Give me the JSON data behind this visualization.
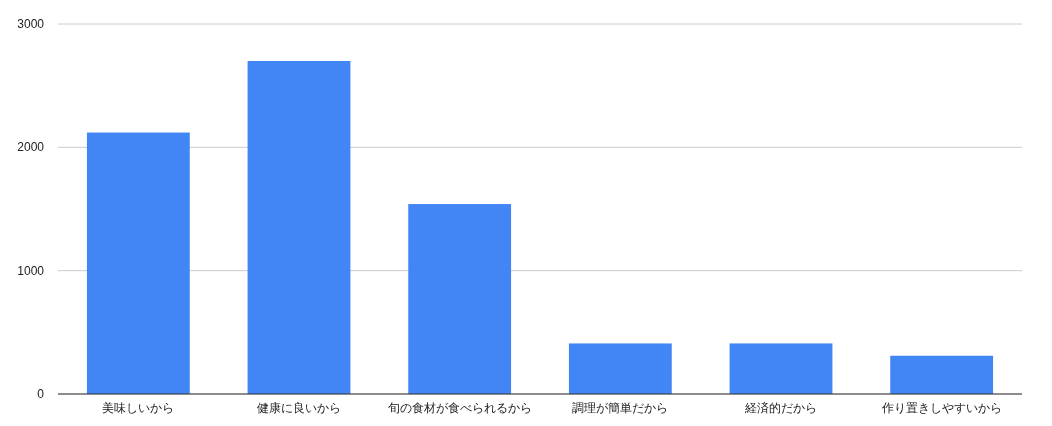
{
  "chart_data": {
    "type": "bar",
    "categories": [
      "美味しいから",
      "健康に良いから",
      "旬の食材が食べられるから",
      "調理が簡単だから",
      "経済的だから",
      "作り置きしやすいから"
    ],
    "values": [
      2120,
      2700,
      1540,
      410,
      410,
      310
    ],
    "color": "#4285f4",
    "ylim": [
      0,
      3000
    ],
    "yticks": [
      0,
      1000,
      2000,
      3000
    ],
    "grid": "y"
  }
}
